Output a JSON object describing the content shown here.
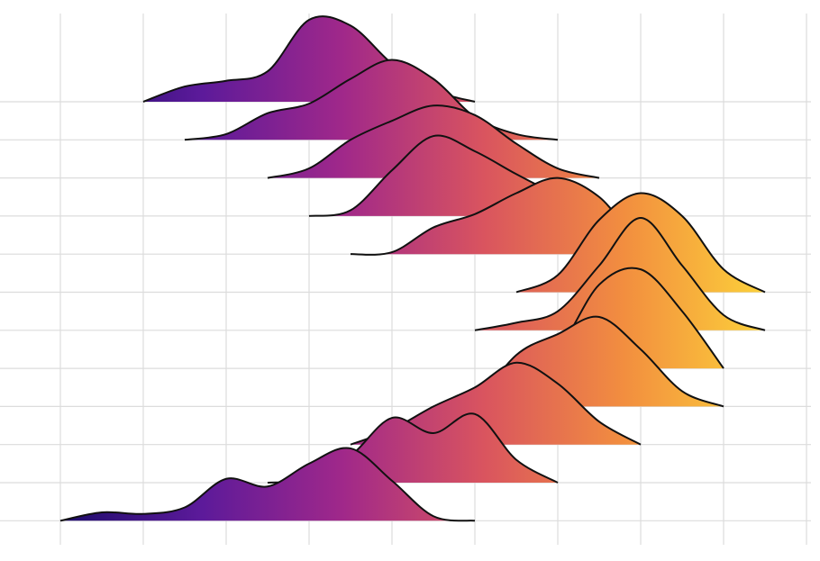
{
  "chart_data": {
    "type": "ridgeline",
    "categories": [
      null,
      null,
      null,
      null,
      null,
      null,
      null,
      null,
      null,
      null,
      null,
      null
    ],
    "x": [
      0,
      0.5,
      1,
      1.5,
      2,
      2.5,
      3,
      3.5,
      4,
      4.5,
      5,
      5.5,
      6,
      6.5,
      7,
      7.5,
      8,
      8.5,
      9
    ],
    "xlim": [
      -0.728,
      9.163
    ],
    "xticks": [
      0,
      1,
      2,
      3,
      4,
      5,
      6,
      7,
      8,
      9
    ],
    "grid": true,
    "colors": [
      "#1d0c6b",
      "#5c1a9a",
      "#a0288a",
      "#d9545f",
      "#f28e3f",
      "#fcd13a"
    ],
    "series": [
      {
        "values": [
          null,
          null,
          0,
          0.4,
          0.55,
          0.8,
          2.15,
          2.0,
          1.0,
          0.3,
          0,
          null,
          null,
          null,
          null,
          null,
          null,
          null,
          null
        ]
      },
      {
        "values": [
          null,
          null,
          null,
          0,
          0.15,
          0.7,
          0.95,
          1.6,
          2.1,
          1.6,
          0.6,
          0.15,
          0,
          null,
          null,
          null,
          null,
          null,
          null
        ]
      },
      {
        "values": [
          null,
          null,
          null,
          null,
          null,
          0,
          0.25,
          1.0,
          1.5,
          1.9,
          1.65,
          0.9,
          0.25,
          0,
          null,
          null,
          null,
          null,
          null
        ]
      },
      {
        "values": [
          null,
          null,
          null,
          null,
          null,
          null,
          0,
          0.15,
          1.2,
          2.1,
          1.7,
          1.1,
          0.55,
          0.1,
          0,
          null,
          null,
          null,
          null
        ]
      },
      {
        "values": [
          null,
          null,
          null,
          null,
          null,
          null,
          null,
          0,
          0.05,
          0.7,
          1.05,
          1.6,
          2.0,
          1.5,
          0.3,
          0,
          null,
          null,
          null
        ]
      },
      {
        "values": [
          null,
          null,
          null,
          null,
          null,
          null,
          null,
          null,
          null,
          null,
          null,
          0,
          0.45,
          1.9,
          2.6,
          2.0,
          0.6,
          0,
          null
        ]
      },
      {
        "values": [
          null,
          null,
          null,
          null,
          null,
          null,
          null,
          null,
          null,
          null,
          0,
          0.2,
          0.5,
          1.7,
          2.95,
          1.7,
          0.4,
          0,
          null
        ]
      },
      {
        "values": [
          null,
          null,
          null,
          null,
          null,
          null,
          null,
          null,
          null,
          null,
          null,
          0,
          0.5,
          2.2,
          2.6,
          1.5,
          0,
          null,
          null
        ]
      },
      {
        "values": [
          null,
          null,
          null,
          null,
          null,
          null,
          null,
          null,
          null,
          null,
          0,
          1.35,
          1.9,
          2.35,
          1.5,
          0.4,
          0,
          null,
          null
        ]
      },
      {
        "values": [
          null,
          null,
          null,
          null,
          null,
          null,
          null,
          0,
          0.4,
          1.0,
          1.5,
          2.15,
          1.6,
          0.6,
          0,
          null,
          null,
          null,
          null
        ]
      },
      {
        "values": [
          null,
          null,
          null,
          null,
          null,
          0,
          0.1,
          0.7,
          1.7,
          1.3,
          1.8,
          0.6,
          0,
          null,
          null,
          null,
          null,
          null,
          null
        ]
      },
      {
        "values": [
          0,
          0.22,
          0.18,
          0.35,
          1.1,
          0.9,
          1.5,
          1.9,
          1.05,
          0.12,
          0,
          null,
          null,
          null,
          null,
          null,
          null,
          null,
          null
        ]
      }
    ]
  }
}
